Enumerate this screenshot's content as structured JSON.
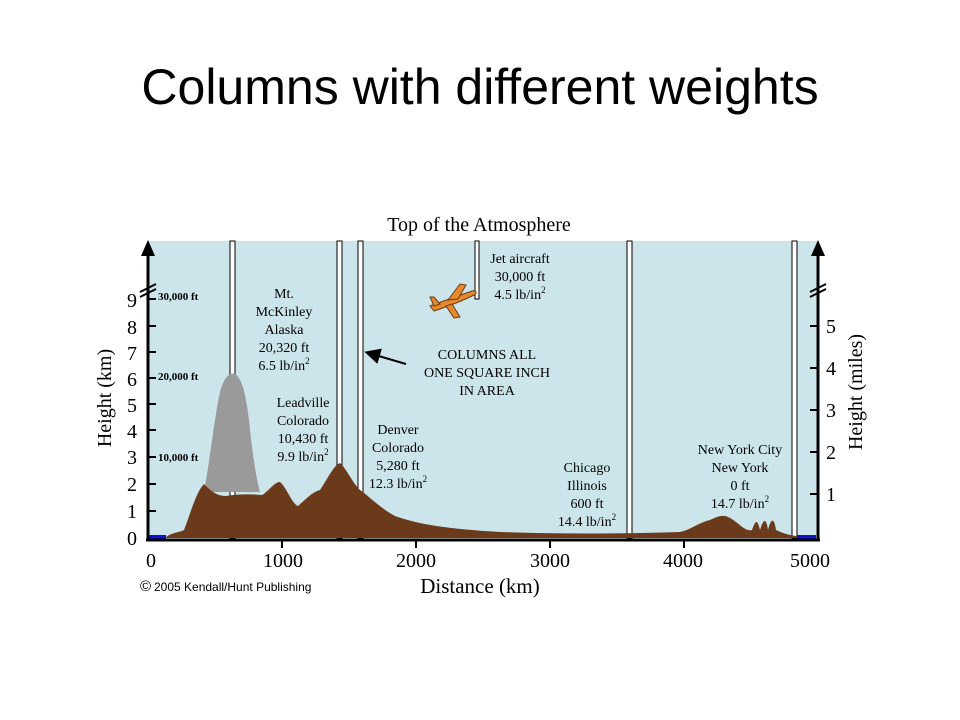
{
  "slide": {
    "title": "Columns with different weights"
  },
  "figure": {
    "top_label": "Top of the Atmosphere",
    "copyright": "2005 Kendall/Hunt Publishing",
    "copyright_symbol": "©",
    "x_axis": {
      "label": "Distance (km)",
      "ticks": [
        "0",
        "1000",
        "2000",
        "3000",
        "4000",
        "5000"
      ],
      "range": [
        0,
        5000
      ]
    },
    "y_axis_left": {
      "label": "Height (km)",
      "ticks": [
        "0",
        "1",
        "2",
        "3",
        "4",
        "5",
        "6",
        "7",
        "8",
        "9"
      ],
      "ft_labels": [
        "10,000 ft",
        "20,000 ft",
        "30,000 ft"
      ]
    },
    "y_axis_right": {
      "label": "Height (miles)",
      "ticks": [
        "1",
        "2",
        "3",
        "4",
        "5"
      ]
    },
    "columns_note": [
      "COLUMNS ALL",
      "ONE SQUARE INCH",
      "IN AREA"
    ],
    "locations": [
      {
        "name_lines": [
          "Mt.",
          "McKinley",
          "Alaska"
        ],
        "elevation": "20,320 ft",
        "pressure_value": "6.5 lb/in",
        "pressure_exp": "2"
      },
      {
        "name_lines": [
          "Leadville",
          "Colorado"
        ],
        "elevation": "10,430 ft",
        "pressure_value": "9.9 lb/in",
        "pressure_exp": "2"
      },
      {
        "name_lines": [
          "Denver",
          "Colorado"
        ],
        "elevation": "5,280 ft",
        "pressure_value": "12.3 lb/in",
        "pressure_exp": "2"
      },
      {
        "name_lines": [
          "Jet aircraft"
        ],
        "elevation": "30,000 ft",
        "pressure_value": "4.5 lb/in",
        "pressure_exp": "2"
      },
      {
        "name_lines": [
          "Chicago",
          "Illinois"
        ],
        "elevation": "600 ft",
        "pressure_value": "14.4 lb/in",
        "pressure_exp": "2"
      },
      {
        "name_lines": [
          "New York City",
          "New York"
        ],
        "elevation": "0 ft",
        "pressure_value": "14.7 lb/in",
        "pressure_exp": "2"
      }
    ],
    "colors": {
      "sky": "#cce5ea",
      "terrain": "#6b3a1a",
      "mountain": "#9a9a9a",
      "sea": "#1010cc",
      "plane": "#e88a2a"
    }
  }
}
